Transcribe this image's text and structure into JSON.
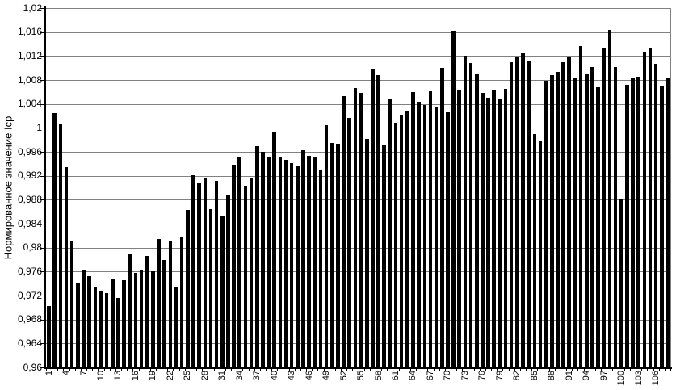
{
  "chart_data": {
    "type": "bar",
    "title": "",
    "ylabel": "Нормированное значение Iср",
    "xlabel": "",
    "ylim": [
      0.96,
      1.02
    ],
    "ytick_step": 0.004,
    "decimal_separator": ",",
    "grid": "horizontal",
    "legend": "none",
    "bar_color": "#000000",
    "gridline_color": "#808080",
    "axis_color": "#000000",
    "background_color": "#ffffff",
    "n_bars": 108,
    "x_label_every": 3,
    "y_tick_labels": [
      "0,96",
      "0,964",
      "0,968",
      "0,972",
      "0,976",
      "0,98",
      "0,984",
      "0,988",
      "0,992",
      "0,996",
      "1",
      "1,004",
      "1,008",
      "1,012",
      "1,016",
      "1,02"
    ],
    "x_tick_labels": [
      "1",
      "4",
      "7",
      "10",
      "13",
      "16",
      "19",
      "22",
      "25",
      "28",
      "31",
      "34",
      "37",
      "40",
      "43",
      "46",
      "49",
      "52",
      "55",
      "58",
      "61",
      "64",
      "67",
      "70",
      "73",
      "76",
      "79",
      "82",
      "85",
      "88",
      "91",
      "94",
      "97",
      "100",
      "103",
      "106"
    ],
    "values": [
      0.9702,
      1.0025,
      1.0006,
      0.9934,
      0.981,
      0.9741,
      0.9762,
      0.9753,
      0.9734,
      0.9727,
      0.9724,
      0.9748,
      0.9716,
      0.9746,
      0.9789,
      0.9758,
      0.9763,
      0.9786,
      0.976,
      0.9815,
      0.9779,
      0.981,
      0.9734,
      0.9818,
      0.9863,
      0.9921,
      0.9907,
      0.9916,
      0.9864,
      0.9912,
      0.9853,
      0.9887,
      0.9939,
      0.995,
      0.9903,
      0.9917,
      0.9969,
      0.996,
      0.995,
      0.9992,
      0.995,
      0.9946,
      0.9941,
      0.9936,
      0.9963,
      0.9953,
      0.995,
      0.9931,
      1.0004,
      0.9975,
      0.9973,
      1.0053,
      1.0017,
      1.0066,
      1.0058,
      0.9982,
      1.0099,
      1.0088,
      0.9971,
      1.0049,
      1.0009,
      1.0022,
      1.0027,
      1.006,
      1.0044,
      1.0038,
      1.0061,
      1.0036,
      1.01,
      1.0026,
      1.0162,
      1.0064,
      1.012,
      1.0108,
      1.009,
      1.0058,
      1.005,
      1.0063,
      1.0047,
      1.0065,
      1.011,
      1.0118,
      1.0124,
      1.0111,
      0.999,
      0.9977,
      1.0078,
      1.0088,
      1.0094,
      1.011,
      1.0118,
      1.0083,
      1.0136,
      1.009,
      1.0102,
      1.0068,
      1.0133,
      1.0163,
      1.0102,
      0.988,
      1.0072,
      1.0083,
      1.0085,
      1.0127,
      1.0132,
      1.0107,
      1.007,
      1.0083
    ]
  }
}
